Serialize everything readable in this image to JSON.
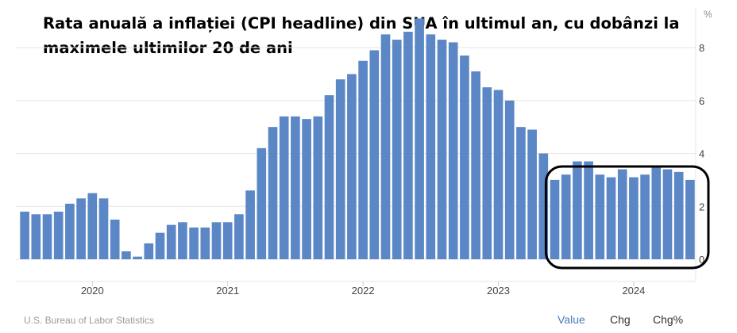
{
  "title": "Rata anuală a inflației (CPI headline) din SUA în ultimul an, cu dobânzi la maximele ultimilor 20 de ani",
  "source": "U.S. Bureau of Labor Statistics",
  "tabs": [
    "Value",
    "Chg",
    "Chg%"
  ],
  "active_tab": "Value",
  "colors": {
    "bar": "#5b87c6",
    "grid": "#e6e6e6",
    "highlight": "#000000",
    "axis_text": "#444444"
  },
  "chart_data": {
    "type": "bar",
    "unit_label": "%",
    "ylim": [
      0,
      9.5
    ],
    "y_ticks": [
      0,
      2,
      4,
      6,
      8
    ],
    "x_tick_labels": [
      "2020",
      "2021",
      "2022",
      "2023",
      "2024"
    ],
    "categories": [
      "2019-07",
      "2019-08",
      "2019-09",
      "2019-10",
      "2019-11",
      "2019-12",
      "2020-01",
      "2020-02",
      "2020-03",
      "2020-04",
      "2020-05",
      "2020-06",
      "2020-07",
      "2020-08",
      "2020-09",
      "2020-10",
      "2020-11",
      "2020-12",
      "2021-01",
      "2021-02",
      "2021-03",
      "2021-04",
      "2021-05",
      "2021-06",
      "2021-07",
      "2021-08",
      "2021-09",
      "2021-10",
      "2021-11",
      "2021-12",
      "2022-01",
      "2022-02",
      "2022-03",
      "2022-04",
      "2022-05",
      "2022-06",
      "2022-07",
      "2022-08",
      "2022-09",
      "2022-10",
      "2022-11",
      "2022-12",
      "2023-01",
      "2023-02",
      "2023-03",
      "2023-04",
      "2023-05",
      "2023-06",
      "2023-07",
      "2023-08",
      "2023-09",
      "2023-10",
      "2023-11",
      "2023-12",
      "2024-01",
      "2024-02",
      "2024-03",
      "2024-04",
      "2024-05",
      "2024-06"
    ],
    "values": [
      1.8,
      1.7,
      1.7,
      1.8,
      2.1,
      2.3,
      2.5,
      2.3,
      1.5,
      0.3,
      0.1,
      0.6,
      1.0,
      1.3,
      1.4,
      1.2,
      1.2,
      1.4,
      1.4,
      1.7,
      2.6,
      4.2,
      5.0,
      5.4,
      5.4,
      5.3,
      5.4,
      6.2,
      6.8,
      7.0,
      7.5,
      7.9,
      8.5,
      8.3,
      8.6,
      9.1,
      8.5,
      8.3,
      8.2,
      7.7,
      7.1,
      6.5,
      6.4,
      6.0,
      5.0,
      4.9,
      4.0,
      3.0,
      3.2,
      3.7,
      3.7,
      3.2,
      3.1,
      3.4,
      3.1,
      3.2,
      3.5,
      3.4,
      3.3,
      3.0
    ],
    "highlight_range": [
      "2023-06",
      "2024-06"
    ],
    "grid": true
  }
}
